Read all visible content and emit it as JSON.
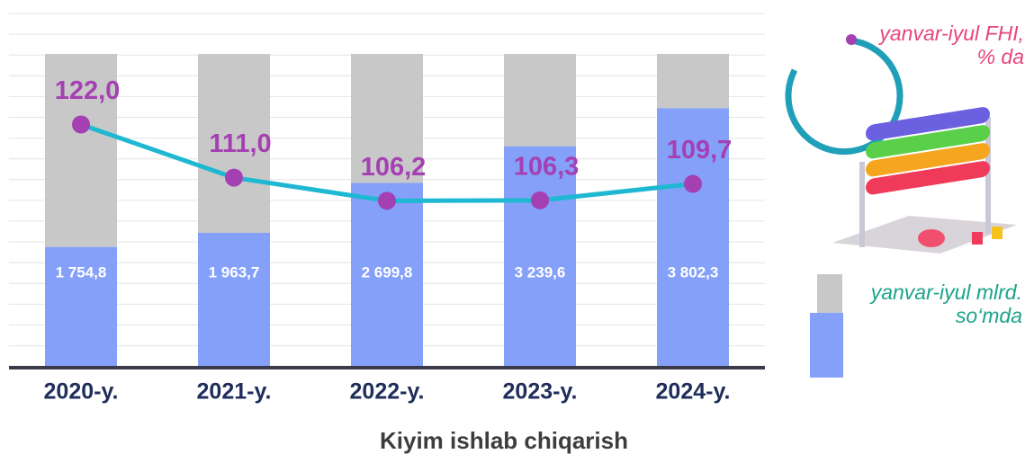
{
  "chart_data": {
    "type": "bar-line",
    "title": "Kiyim ishlab chiqarish",
    "categories": [
      "2020-y.",
      "2021-y.",
      "2022-y.",
      "2023-y.",
      "2024-y."
    ],
    "series": [
      {
        "name": "yanvar-iyul mlrd. so‘mda",
        "type": "bar",
        "color": "#84a0f9",
        "values": [
          1754.8,
          1963.7,
          2699.8,
          3239.6,
          3802.3
        ],
        "value_labels": [
          "1 754,8",
          "1 963,7",
          "2 699,8",
          "3 239,6",
          "3 802,3"
        ]
      },
      {
        "name": "yanvar-iyul FHI, % da",
        "type": "line",
        "axis": "y2",
        "color": "#1fb8d2",
        "marker_color": "#a540b3",
        "values": [
          122.0,
          111.0,
          106.2,
          106.3,
          109.7
        ],
        "value_labels": [
          "122,0",
          "111,0",
          "106,2",
          "106,3",
          "109,7"
        ]
      }
    ],
    "ylim": [
      0,
      5200
    ],
    "y2lim": [
      72,
      145
    ]
  }
}
